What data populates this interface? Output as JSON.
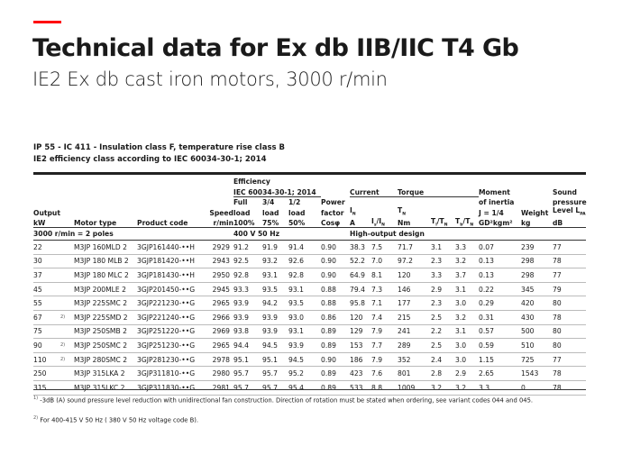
{
  "title": "Technical data for Ex db IIB/IIC T4 Gb",
  "subtitle": "IE2 Ex db cast iron motors, 3000 r/min",
  "conditions": [
    "IP 55 - IC 411 - Insulation class F, temperature rise class B",
    "IE2 efficiency class according to IEC 60034-30-1; 2014"
  ],
  "header": {
    "efficiency": "Efficiency",
    "efficiency_std": "IEC 60034-30-1; 2014",
    "output": "Output",
    "output_unit": "kW",
    "motor_type": "Motor type",
    "product_code": "Product code",
    "speed": "Speed",
    "speed_unit": "r/min",
    "full": "Full",
    "full2": "load",
    "full3": "100%",
    "q34": "3/4",
    "q34b": "load",
    "q34c": "75%",
    "half": "1/2",
    "half2": "load",
    "half3": "50%",
    "power": "Power",
    "power2": "factor",
    "power3": "Cosφ",
    "current": "Current",
    "in": "I",
    "in_sub": "N",
    "in_unit": "A",
    "is": "I",
    "is_sub": "s",
    "is_mid": "/I",
    "is_sub2": "N",
    "torque": "Torque",
    "tn": "T",
    "tn_sub": "N",
    "tn_unit": "Nm",
    "tl": "T",
    "tl_sub": "l",
    "tl_mid": "/T",
    "tl_sub2": "N",
    "tb": "T",
    "tb_sub": "b",
    "tb_mid": "/T",
    "tb_sub2": "N",
    "moment": "Moment",
    "moment2": "of inertia",
    "moment3": "J = 1/4",
    "moment4": "GD²kgm²",
    "weight": "Weight",
    "weight_unit": "kg",
    "sound": "Sound",
    "sound2": "pressure",
    "sound3": "Level L",
    "sound3_sub": "PA",
    "sound_unit": "dB"
  },
  "section": {
    "poles": "3000 r/min = 2 poles",
    "voltage": "400 V 50 Hz",
    "design": "High-output design"
  },
  "rows": [
    [
      "22",
      "",
      "M3JP 160MLD 2",
      "3GJP161440-••H",
      "2929",
      "91.2",
      "91.9",
      "91.4",
      "0.90",
      "38.3",
      "7.5",
      "71.7",
      "3.1",
      "3.3",
      "0.07",
      "239",
      "77"
    ],
    [
      "30",
      "",
      "M3JP 180 MLB 2",
      "3GJP181420-••H",
      "2943",
      "92.5",
      "93.2",
      "92.6",
      "0.90",
      "52.2",
      "7.0",
      "97.2",
      "2.3",
      "3.2",
      "0.13",
      "298",
      "78"
    ],
    [
      "37",
      "",
      "M3JP 180 MLC 2",
      "3GJP181430-••H",
      "2950",
      "92.8",
      "93.1",
      "92.8",
      "0.90",
      "64.9",
      "8.1",
      "120",
      "3.3",
      "3.7",
      "0.13",
      "298",
      "77"
    ],
    [
      "45",
      "",
      "M3JP 200MLE 2",
      "3GJP201450-••G",
      "2945",
      "93.3",
      "93.5",
      "93.1",
      "0.88",
      "79.4",
      "7.3",
      "146",
      "2.9",
      "3.1",
      "0.22",
      "345",
      "79"
    ],
    [
      "55",
      "",
      "M3JP 225SMC 2",
      "3GJP221230-••G",
      "2965",
      "93.9",
      "94.2",
      "93.5",
      "0.88",
      "95.8",
      "7.1",
      "177",
      "2.3",
      "3.0",
      "0.29",
      "420",
      "80"
    ],
    [
      "67",
      "2)",
      "M3JP 225SMD 2",
      "3GJP221240-••G",
      "2966",
      "93.9",
      "93.9",
      "93.0",
      "0.86",
      "120",
      "7.4",
      "215",
      "2.5",
      "3.2",
      "0.31",
      "430",
      "78"
    ],
    [
      "75",
      "",
      "M3JP 250SMB 2",
      "3GJP251220-••G",
      "2969",
      "93.8",
      "93.9",
      "93.1",
      "0.89",
      "129",
      "7.9",
      "241",
      "2.2",
      "3.1",
      "0.57",
      "500",
      "80"
    ],
    [
      "90",
      "2)",
      "M3JP 250SMC 2",
      "3GJP251230-••G",
      "2965",
      "94.4",
      "94.5",
      "93.9",
      "0.89",
      "153",
      "7.7",
      "289",
      "2.5",
      "3.0",
      "0.59",
      "510",
      "80"
    ],
    [
      "110",
      "2)",
      "M3JP 280SMC 2",
      "3GJP281230-••G",
      "2978",
      "95.1",
      "95.1",
      "94.5",
      "0.90",
      "186",
      "7.9",
      "352",
      "2.4",
      "3.0",
      "1.15",
      "725",
      "77"
    ],
    [
      "250",
      "",
      "M3JP 315LKA 2",
      "3GJP311810-••G",
      "2980",
      "95.7",
      "95.7",
      "95.2",
      "0.89",
      "423",
      "7.6",
      "801",
      "2.8",
      "2.9",
      "2.65",
      "1543",
      "78"
    ],
    [
      "315",
      "",
      "M3JP 315LKC 2",
      "3GJP311830-••G",
      "2981",
      "95.7",
      "95.7",
      "95.4",
      "0.89",
      "533",
      "8.8",
      "1009",
      "3.2",
      "3.2",
      "3.3",
      "0",
      "78"
    ]
  ],
  "footnotes": [
    {
      "mark": "1)",
      "text": " -3dB (A) sound pressure level reduction with unidirectional fan construction. Direction of rotation must be stated when ordering, see variant codes 044 and 045."
    },
    {
      "mark": "2)",
      "text": " For 400-415 V 50 Hz ( 380 V 50 Hz voltage code B)."
    }
  ],
  "colors": {
    "accent": "#ff000f"
  }
}
